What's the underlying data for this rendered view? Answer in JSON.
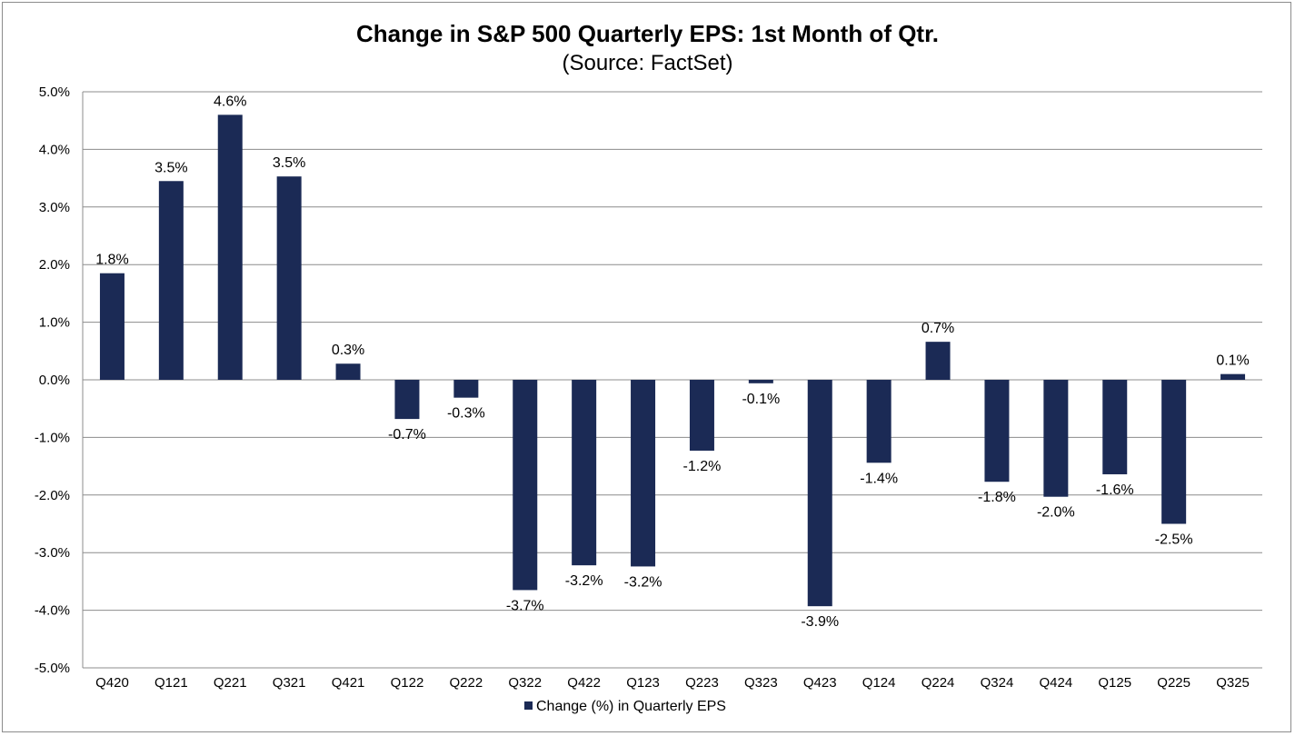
{
  "chart_data": {
    "type": "bar",
    "title": "Change in S&P 500 Quarterly EPS: 1st Month of Qtr.",
    "subtitle": "(Source: FactSet)",
    "xlabel": "",
    "ylabel": "",
    "ylim": [
      -5.0,
      5.0
    ],
    "ytick_step": 1.0,
    "grid": true,
    "legend_position": "bottom",
    "bar_color": "#1b2a55",
    "categories": [
      "Q420",
      "Q121",
      "Q221",
      "Q321",
      "Q421",
      "Q122",
      "Q222",
      "Q322",
      "Q422",
      "Q123",
      "Q223",
      "Q323",
      "Q423",
      "Q124",
      "Q224",
      "Q324",
      "Q424",
      "Q125",
      "Q225",
      "Q325"
    ],
    "series": [
      {
        "name": "Change (%) in Quarterly EPS",
        "values": [
          1.85,
          3.45,
          4.6,
          3.53,
          0.28,
          -0.68,
          -0.31,
          -3.65,
          -3.22,
          -3.24,
          -1.23,
          -0.06,
          -3.93,
          -1.44,
          0.66,
          -1.77,
          -2.03,
          -1.64,
          -2.5,
          0.1
        ],
        "labels": [
          "1.8%",
          "3.5%",
          "4.6%",
          "3.5%",
          "0.3%",
          "-0.7%",
          "-0.3%",
          "-3.7%",
          "-3.2%",
          "-3.2%",
          "-1.2%",
          "-0.1%",
          "-3.9%",
          "-1.4%",
          "0.7%",
          "-1.8%",
          "-2.0%",
          "-1.6%",
          "-2.5%",
          "0.1%"
        ]
      }
    ],
    "ytick_labels": [
      "5.0%",
      "4.0%",
      "3.0%",
      "2.0%",
      "1.0%",
      "0.0%",
      "-1.0%",
      "-2.0%",
      "-3.0%",
      "-4.0%",
      "-5.0%"
    ]
  }
}
